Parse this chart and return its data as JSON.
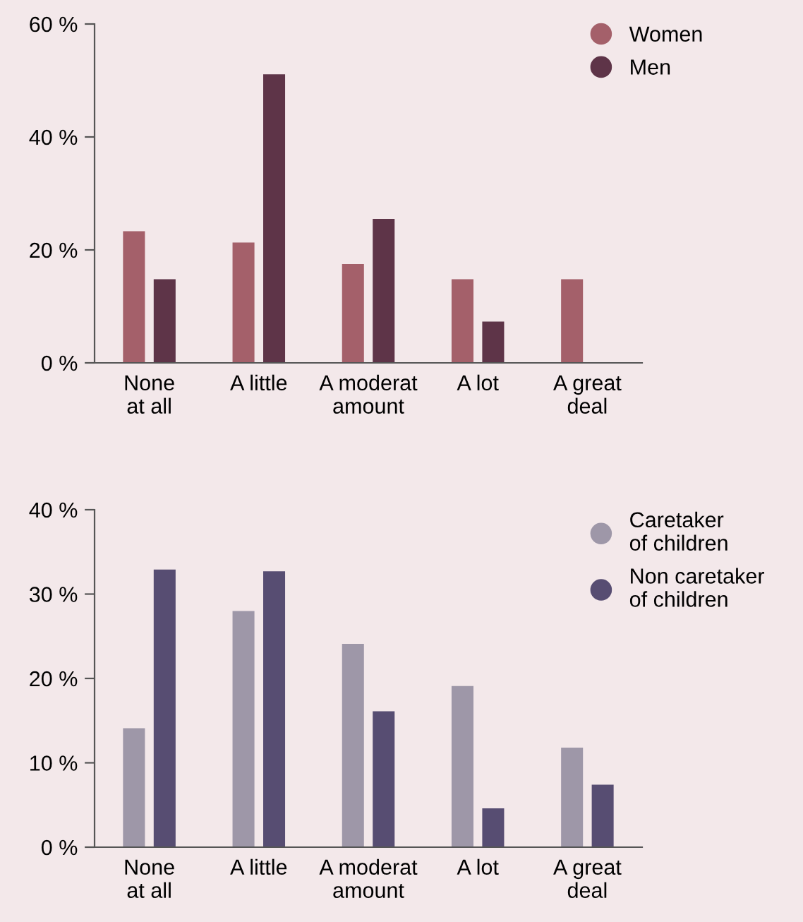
{
  "chart_data": [
    {
      "type": "bar",
      "categories": [
        "None\nat all",
        "A little",
        "A moderat\namount",
        "A lot",
        "A great\ndeal"
      ],
      "series": [
        {
          "name": "Women",
          "color": "#a4606a",
          "values": [
            23.3,
            21.3,
            17.5,
            14.8,
            14.8
          ]
        },
        {
          "name": "Men",
          "color": "#5e3448",
          "values": [
            14.8,
            51.1,
            25.5,
            7.3,
            null
          ]
        }
      ],
      "ylim": [
        0,
        60
      ],
      "yticks": [
        {
          "value": 0,
          "label": "0 %"
        },
        {
          "value": 20,
          "label": "20 %"
        },
        {
          "value": 40,
          "label": "40 %"
        },
        {
          "value": 60,
          "label": "60 %"
        }
      ],
      "legend": "top right",
      "grid": false
    },
    {
      "type": "bar",
      "categories": [
        "None\nat all",
        "A little",
        "A moderat\namount",
        "A lot",
        "A great\ndeal"
      ],
      "series": [
        {
          "name": "Caretaker\nof children",
          "color": "#9e97a8",
          "values": [
            14.1,
            28.0,
            24.1,
            19.1,
            11.8
          ]
        },
        {
          "name": "Non caretaker\nof children",
          "color": "#574d72",
          "values": [
            32.9,
            32.7,
            16.1,
            4.6,
            7.4
          ]
        }
      ],
      "ylim": [
        0,
        40
      ],
      "yticks": [
        {
          "value": 0,
          "label": "0 %"
        },
        {
          "value": 10,
          "label": "10 %"
        },
        {
          "value": 20,
          "label": "20 %"
        },
        {
          "value": 30,
          "label": "30 %"
        },
        {
          "value": 40,
          "label": "40 %"
        }
      ],
      "legend": "top right",
      "grid": false
    }
  ]
}
